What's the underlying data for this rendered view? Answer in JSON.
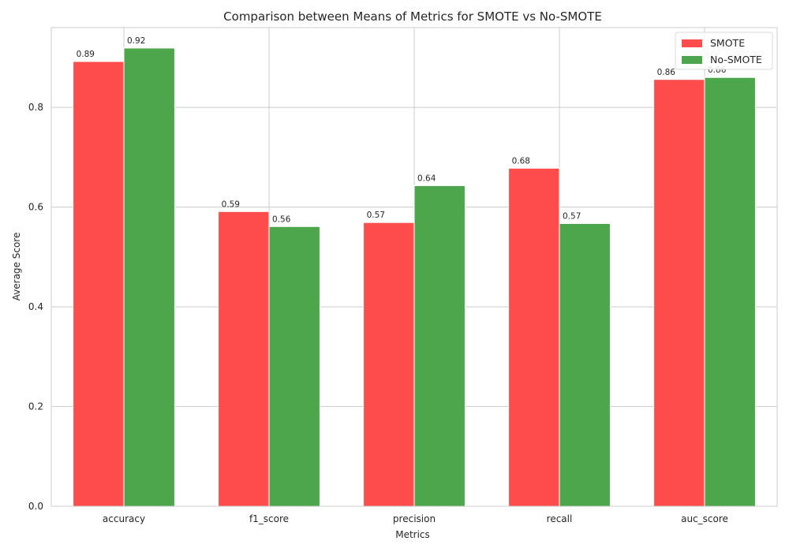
{
  "chart_data": {
    "type": "bar",
    "title": "Comparison between Means of Metrics for SMOTE vs No-SMOTE",
    "xlabel": "Metrics",
    "ylabel": "Average Score",
    "categories": [
      "accuracy",
      "f1_score",
      "precision",
      "recall",
      "auc_score"
    ],
    "series": [
      {
        "name": "SMOTE",
        "color": "#ff4c4c",
        "values": [
          0.892,
          0.591,
          0.569,
          0.678,
          0.856
        ],
        "labels": [
          "0.89",
          "0.59",
          "0.57",
          "0.68",
          "0.86"
        ]
      },
      {
        "name": "No-SMOTE",
        "color": "#4ca64c",
        "values": [
          0.919,
          0.561,
          0.643,
          0.567,
          0.86
        ],
        "labels": [
          "0.92",
          "0.56",
          "0.64",
          "0.57",
          "0.86"
        ]
      }
    ],
    "ylim": [
      0,
      0.96
    ],
    "yticks": [
      0.0,
      0.2,
      0.4,
      0.6,
      0.8
    ],
    "ytick_labels": [
      "0.0",
      "0.2",
      "0.4",
      "0.6",
      "0.8"
    ],
    "grid": true,
    "legend_position": "top-right"
  }
}
